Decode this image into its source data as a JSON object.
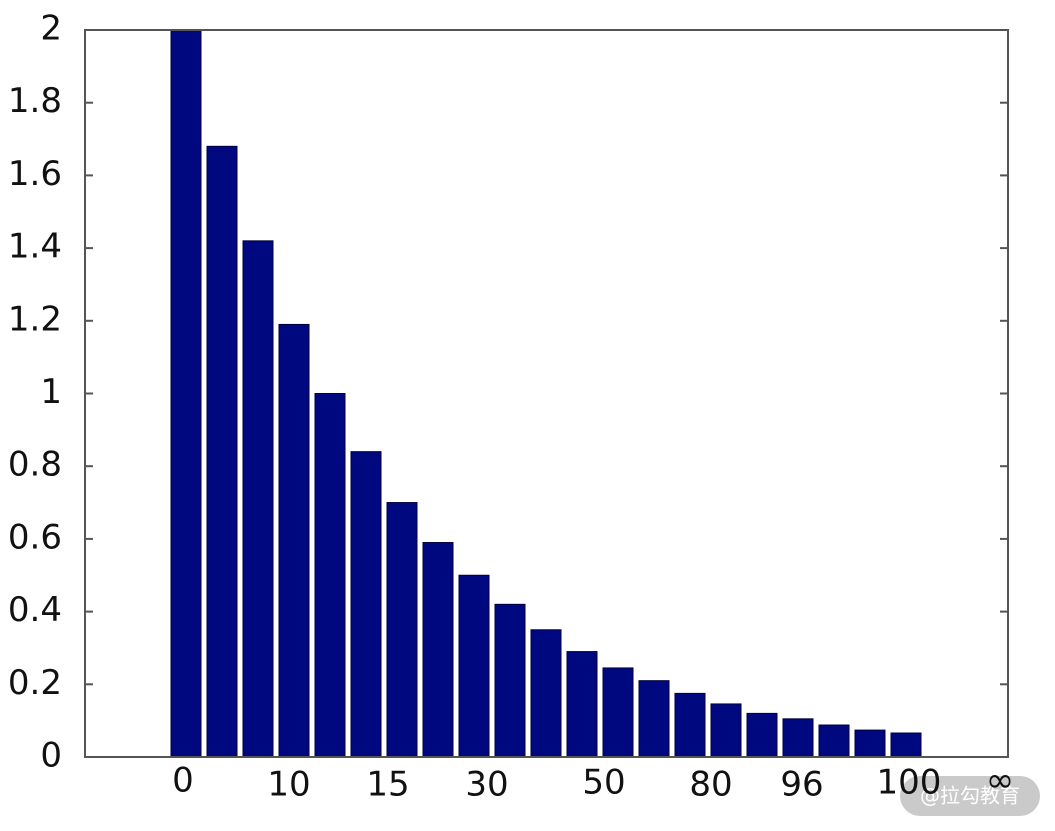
{
  "chart_data": {
    "type": "bar",
    "values": [
      2.0,
      1.68,
      1.42,
      1.19,
      1.0,
      0.84,
      0.7,
      0.59,
      0.5,
      0.42,
      0.35,
      0.29,
      0.245,
      0.21,
      0.175,
      0.146,
      0.12,
      0.105,
      0.088,
      0.074,
      0.066
    ],
    "color": "#00087f",
    "ylim": [
      0,
      2
    ],
    "yticks": [
      0,
      0.2,
      0.4,
      0.6,
      0.8,
      1,
      1.2,
      1.4,
      1.6,
      1.8,
      2
    ],
    "xtick_labels": [
      "0",
      "10",
      "15",
      "30",
      "50",
      "80",
      "96",
      "100",
      "∞"
    ],
    "watermark": "@拉勾教育"
  }
}
